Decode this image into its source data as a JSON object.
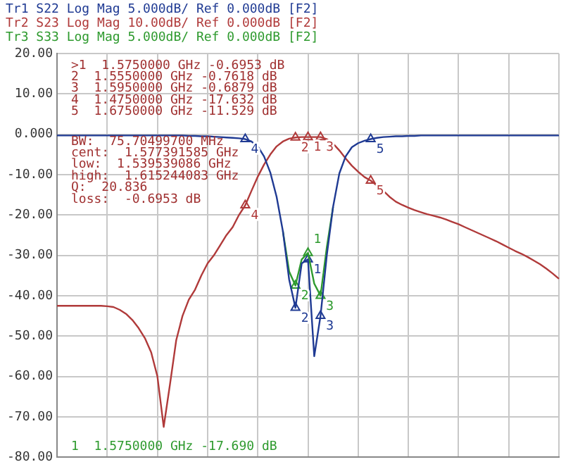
{
  "chart_data": {
    "type": "line",
    "categories": [
      null,
      null,
      null,
      null,
      null,
      null,
      null,
      null,
      null,
      null,
      null,
      null,
      null,
      null,
      null,
      null,
      null,
      null,
      null,
      null,
      null,
      null,
      null,
      null,
      null,
      null,
      null,
      null,
      null,
      null,
      null,
      null,
      null,
      null,
      null,
      null,
      null,
      null,
      null,
      null,
      null,
      null,
      null,
      null,
      null,
      null,
      null,
      null,
      null,
      null,
      null,
      null,
      null,
      null,
      null,
      null,
      null,
      null,
      null,
      null,
      null,
      null,
      null,
      null,
      null,
      null,
      null,
      null,
      null,
      null,
      null,
      null,
      null,
      null,
      null,
      null,
      null,
      null,
      null,
      null,
      null
    ],
    "ylim": [
      -80,
      20
    ],
    "yticks": [
      {
        "value": 20,
        "label": "20.00"
      },
      {
        "value": 10,
        "label": "10.00"
      },
      {
        "value": 0,
        "label": "0.000"
      },
      {
        "value": -10,
        "label": "-10.00"
      },
      {
        "value": -20,
        "label": "-20.00"
      },
      {
        "value": -30,
        "label": "-30.00"
      },
      {
        "value": -40,
        "label": "-40.00"
      },
      {
        "value": -50,
        "label": "-50.00"
      },
      {
        "value": -60,
        "label": "-60.00"
      },
      {
        "value": -70,
        "label": "-70.00"
      },
      {
        "value": -80,
        "label": "-80.00"
      }
    ],
    "grid": true,
    "marker": "none",
    "line_style": "solid",
    "tick_labels": "y",
    "series": [
      {
        "name": "Tr1 S22 Log Mag 5.000dB/ Ref 0.000dB [F2]",
        "color": "#1f3a93",
        "values": [
          -0.3,
          -0.3,
          -0.3,
          -0.3,
          -0.3,
          -0.3,
          -0.3,
          -0.3,
          -0.3,
          -0.3,
          -0.3,
          -0.3,
          -0.3,
          -0.3,
          -0.3,
          -0.3,
          -0.3,
          -0.3,
          -0.3,
          -0.3,
          -0.3,
          -0.4,
          -0.4,
          -0.5,
          -0.5,
          -0.6,
          -0.7,
          -0.8,
          -0.9,
          -1.0,
          -1.2,
          -1.8,
          -3,
          -5.5,
          -9.5,
          -15.5,
          -24,
          -36,
          -43,
          -32,
          -31,
          -55,
          -45,
          -30,
          -18,
          -9.7,
          -5.5,
          -3.2,
          -2.2,
          -1.6,
          -1.2,
          -0.9,
          -0.7,
          -0.6,
          -0.5,
          -0.5,
          -0.4,
          -0.4,
          -0.3,
          -0.3,
          -0.3,
          -0.3,
          -0.3,
          -0.3,
          -0.3,
          -0.3,
          -0.3,
          -0.3,
          -0.3,
          -0.3,
          -0.3,
          -0.3,
          -0.3,
          -0.3,
          -0.3,
          -0.3,
          -0.3,
          -0.3,
          -0.3,
          -0.3,
          -0.3
        ]
      },
      {
        "name": "Tr2 S23 Log Mag 10.00dB/ Ref 0.000dB [F2]",
        "color": "#b03a3a",
        "values": [
          -42.5,
          -42.5,
          -42.5,
          -42.5,
          -42.5,
          -42.5,
          -42.5,
          -42.5,
          -42.6,
          -42.8,
          -43.5,
          -44.5,
          -46,
          -48,
          -50.5,
          -54,
          -60,
          -72.5,
          -62,
          -51,
          -45,
          -41,
          -38.5,
          -35,
          -32,
          -30,
          -27.5,
          -25,
          -23,
          -20,
          -17.6,
          -14,
          -10.5,
          -7.5,
          -5,
          -3,
          -1.8,
          -1.1,
          -0.8,
          -0.7,
          -0.7,
          -0.7,
          -0.7,
          -1.2,
          -2.3,
          -4,
          -6,
          -7.8,
          -9.3,
          -10.6,
          -11.5,
          -12.7,
          -14,
          -15.5,
          -16.7,
          -17.5,
          -18.2,
          -18.8,
          -19.3,
          -19.8,
          -20.2,
          -20.6,
          -21.1,
          -21.7,
          -22.3,
          -23,
          -23.7,
          -24.4,
          -25.1,
          -25.8,
          -26.5,
          -27.3,
          -28.1,
          -28.9,
          -29.6,
          -30.4,
          -31.3,
          -32.2,
          -33.3,
          -34.5,
          -35.8
        ]
      },
      {
        "name": "Tr3 S33 Log Mag 5.000dB/ Ref 0.000dB [F2]",
        "color": "#2e9a2e",
        "values": [
          null,
          null,
          null,
          null,
          null,
          null,
          null,
          null,
          null,
          null,
          null,
          null,
          null,
          null,
          null,
          null,
          null,
          null,
          null,
          null,
          null,
          null,
          null,
          null,
          null,
          null,
          null,
          null,
          null,
          null,
          null,
          null,
          null,
          null,
          null,
          null,
          -24,
          -34,
          -37.5,
          -31,
          -29.4,
          -37,
          -40,
          -28,
          -18,
          null,
          null,
          null,
          null,
          null,
          null,
          null,
          null,
          null,
          null,
          null,
          null,
          null,
          null,
          null,
          null,
          null,
          null,
          null,
          null,
          null,
          null,
          null,
          null,
          null,
          null,
          null,
          null,
          null,
          null,
          null,
          null,
          null,
          null,
          null,
          null
        ]
      },
      {
        "type": "scatter",
        "marker": "triangle",
        "color": "#1f3a93",
        "values": [
          null,
          null,
          null,
          null,
          null,
          null,
          null,
          null,
          null,
          null,
          null,
          null,
          null,
          null,
          null,
          null,
          null,
          null,
          null,
          null,
          null,
          null,
          null,
          null,
          null,
          null,
          null,
          null,
          null,
          null,
          -1.2,
          null,
          null,
          null,
          null,
          null,
          null,
          null,
          -43,
          null,
          -31,
          null,
          -45,
          null,
          null,
          null,
          null,
          null,
          null,
          null,
          -1.2,
          null,
          null,
          null,
          null,
          null,
          null,
          null,
          null,
          null,
          null,
          null,
          null,
          null,
          null,
          null,
          null,
          null,
          null,
          null,
          null,
          null,
          null,
          null,
          null,
          null,
          null,
          null,
          null,
          null,
          null
        ]
      },
      {
        "type": "scatter",
        "marker": "triangle",
        "color": "#b03a3a",
        "values": [
          null,
          null,
          null,
          null,
          null,
          null,
          null,
          null,
          null,
          null,
          null,
          null,
          null,
          null,
          null,
          null,
          null,
          null,
          null,
          null,
          null,
          null,
          null,
          null,
          null,
          null,
          null,
          null,
          null,
          null,
          -17.6,
          null,
          null,
          null,
          null,
          null,
          null,
          null,
          -0.8,
          null,
          -0.7,
          null,
          -0.7,
          null,
          null,
          null,
          null,
          null,
          null,
          null,
          -11.5,
          null,
          null,
          null,
          null,
          null,
          null,
          null,
          null,
          null,
          null,
          null,
          null,
          null,
          null,
          null,
          null,
          null,
          null,
          null,
          null,
          null,
          null,
          null,
          null,
          null,
          null,
          null,
          null,
          null,
          null
        ]
      },
      {
        "type": "scatter",
        "marker": "triangle",
        "color": "#2e9a2e",
        "values": [
          null,
          null,
          null,
          null,
          null,
          null,
          null,
          null,
          null,
          null,
          null,
          null,
          null,
          null,
          null,
          null,
          null,
          null,
          null,
          null,
          null,
          null,
          null,
          null,
          null,
          null,
          null,
          null,
          null,
          null,
          null,
          null,
          null,
          null,
          null,
          null,
          null,
          null,
          -37.5,
          null,
          -29.4,
          null,
          -40,
          null,
          null,
          null,
          null,
          null,
          null,
          null,
          null,
          null,
          null,
          null,
          null,
          null,
          null,
          null,
          null,
          null,
          null,
          null,
          null,
          null,
          null,
          null,
          null,
          null,
          null,
          null,
          null,
          null,
          null,
          null,
          null,
          null,
          null,
          null,
          null,
          null,
          null
        ]
      }
    ],
    "annotations": [
      ">1  1.5750000 GHz -0.6953 dB",
      "2  1.5550000 GHz -0.7618 dB",
      "3  1.5950000 GHz -0.6879 dB",
      "4  1.4750000 GHz -17.632 dB",
      "5  1.6750000 GHz -11.529 dB",
      "BW:  75.70499700 MHz",
      "cent:  1.577391585 GHz",
      "low:  1.539539086 GHz",
      "high:  1.615244083 GHz",
      "Q:  20.836",
      "loss:  -0.6953 dB",
      "1  1.5750000 GHz -17.690 dB",
      {
        "text": "4",
        "y": -1.2
      },
      {
        "text": "2",
        "y": -43
      },
      {
        "text": "1",
        "y": -31
      },
      {
        "text": "3",
        "y": -45
      },
      {
        "text": "5",
        "y": -1.2
      },
      {
        "text": "4",
        "y": -17.6
      },
      {
        "text": "2",
        "y": -0.8
      },
      {
        "text": "1",
        "y": -0.7
      },
      {
        "text": "3",
        "y": -0.7
      },
      {
        "text": "5",
        "y": -11.5
      },
      {
        "text": "2",
        "y": -37.5
      },
      {
        "text": "1",
        "y": -29.4
      },
      {
        "text": "3",
        "y": -40
      }
    ]
  }
}
